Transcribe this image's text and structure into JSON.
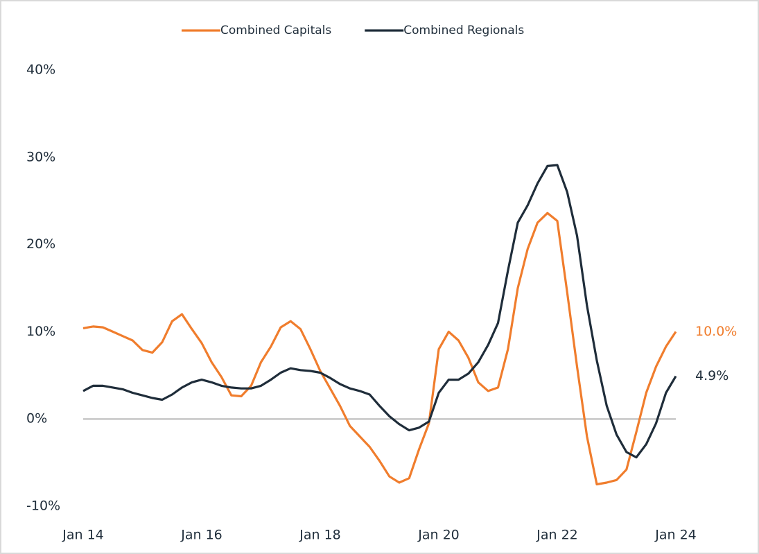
{
  "chart_data": {
    "type": "line",
    "categories": [
      "Jan 14",
      null,
      null,
      null,
      null,
      null,
      null,
      null,
      null,
      null,
      null,
      null,
      "Jan 16",
      null,
      null,
      null,
      null,
      null,
      null,
      null,
      null,
      null,
      null,
      null,
      "Jan 18",
      null,
      null,
      null,
      null,
      null,
      null,
      null,
      null,
      null,
      null,
      null,
      "Jan 20",
      null,
      null,
      null,
      null,
      null,
      null,
      null,
      null,
      null,
      null,
      null,
      "Jan 22",
      null,
      null,
      null,
      null,
      null,
      null,
      null,
      null,
      null,
      null,
      null,
      "Jan 24"
    ],
    "series": [
      {
        "name": "Combined Capitals",
        "color": "#f07d2d",
        "end_label": "10.0%",
        "values": [
          10.4,
          10.6,
          10.5,
          10.0,
          9.5,
          9.0,
          7.9,
          7.6,
          8.8,
          11.2,
          12.0,
          10.3,
          8.7,
          6.5,
          4.8,
          2.7,
          2.6,
          3.8,
          6.5,
          8.3,
          10.5,
          11.2,
          10.3,
          8.0,
          5.5,
          3.5,
          1.5,
          -0.8,
          -2.0,
          -3.2,
          -4.8,
          -6.6,
          -7.3,
          -6.8,
          -3.5,
          -0.5,
          8.0,
          10.0,
          9.0,
          7.0,
          4.2,
          3.2,
          3.6,
          8.0,
          15.0,
          19.5,
          22.5,
          23.6,
          22.7,
          14.5,
          6.0,
          -2.0,
          -7.5,
          -7.3,
          -7.0,
          -5.8,
          -1.5,
          3.0,
          6.0,
          8.3,
          10.0
        ]
      },
      {
        "name": "Combined Regionals",
        "color": "#1f2d3a",
        "end_label": "4.9%",
        "values": [
          3.2,
          3.8,
          3.8,
          3.6,
          3.4,
          3.0,
          2.7,
          2.4,
          2.2,
          2.8,
          3.6,
          4.2,
          4.5,
          4.2,
          3.8,
          3.6,
          3.5,
          3.5,
          3.8,
          4.5,
          5.3,
          5.8,
          5.6,
          5.5,
          5.3,
          4.7,
          4.0,
          3.5,
          3.2,
          2.8,
          1.5,
          0.3,
          -0.6,
          -1.3,
          -1.0,
          -0.3,
          3.0,
          4.5,
          4.5,
          5.2,
          6.5,
          8.5,
          11.0,
          17.0,
          22.5,
          24.5,
          27.0,
          29.0,
          29.1,
          26.0,
          21.0,
          13.0,
          6.7,
          1.5,
          -1.8,
          -3.8,
          -4.4,
          -2.9,
          -0.5,
          3.0,
          4.9
        ]
      }
    ],
    "ylim": [
      -10,
      40
    ],
    "yticks": [
      {
        "value": -10,
        "label": "-10%"
      },
      {
        "value": 0,
        "label": "0%"
      },
      {
        "value": 10,
        "label": "10%"
      },
      {
        "value": 20,
        "label": "20%"
      },
      {
        "value": 30,
        "label": "30%"
      },
      {
        "value": 40,
        "label": "40%"
      }
    ],
    "legend": "top"
  }
}
